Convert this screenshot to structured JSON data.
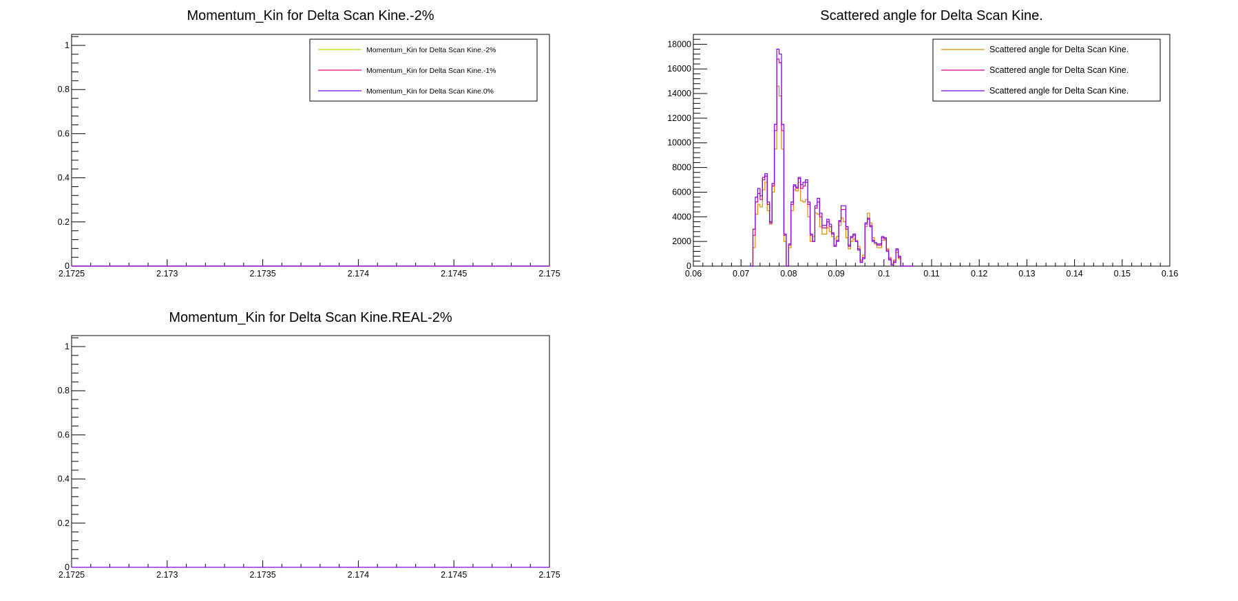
{
  "chart_data": [
    {
      "type": "line",
      "title": "Momentum_Kin for Delta Scan Kine.-2%",
      "xlabel": "",
      "ylabel": "",
      "xlim": [
        2.1725,
        2.175
      ],
      "ylim": [
        0,
        1.05
      ],
      "xticks": [
        "2.1725",
        "2.173",
        "2.1735",
        "2.174",
        "2.1745",
        "2.175"
      ],
      "yticks": [
        "0",
        "0.2",
        "0.4",
        "0.6",
        "0.8",
        "1"
      ],
      "legend_position": "top-right",
      "grid": false,
      "series": [
        {
          "name": "Momentum_Kin for Delta Scan Kine.-2%",
          "color": "#c8c800",
          "x": [
            2.1725,
            2.175
          ],
          "y": [
            0,
            0
          ]
        },
        {
          "name": "Momentum_Kin for Delta Scan Kine.-1%",
          "color": "#e0007a",
          "x": [
            2.1725,
            2.175
          ],
          "y": [
            0,
            0
          ]
        },
        {
          "name": "Momentum_Kin for Delta Scan Kine.0%",
          "color": "#7800e6",
          "x": [
            2.1725,
            2.175
          ],
          "y": [
            0,
            0
          ]
        }
      ]
    },
    {
      "type": "line",
      "title": "Scattered angle for Delta Scan Kine.",
      "xlabel": "",
      "ylabel": "",
      "xlim": [
        0.06,
        0.16
      ],
      "ylim": [
        0,
        18800
      ],
      "xticks": [
        "0.06",
        "0.07",
        "0.08",
        "0.09",
        "0.1",
        "0.11",
        "0.12",
        "0.13",
        "0.14",
        "0.15",
        "0.16"
      ],
      "yticks": [
        "0",
        "2000",
        "4000",
        "6000",
        "8000",
        "10000",
        "12000",
        "14000",
        "16000",
        "18000"
      ],
      "legend_position": "top-right",
      "grid": false,
      "series": [
        {
          "name": "Scattered angle for Delta Scan Kine.",
          "color": "#e08a00",
          "x": [
            0.072,
            0.0725,
            0.073,
            0.0735,
            0.074,
            0.0745,
            0.075,
            0.0755,
            0.076,
            0.0765,
            0.077,
            0.0775,
            0.078,
            0.0785,
            0.079,
            0.0795,
            0.08,
            0.0805,
            0.081,
            0.0815,
            0.082,
            0.0825,
            0.083,
            0.0835,
            0.084,
            0.0845,
            0.085,
            0.0855,
            0.086,
            0.0865,
            0.087,
            0.0875,
            0.088,
            0.0885,
            0.089,
            0.0895,
            0.09,
            0.0905,
            0.091,
            0.0915,
            0.092,
            0.0925,
            0.093,
            0.0935,
            0.094,
            0.0945,
            0.095,
            0.0955,
            0.096,
            0.0965,
            0.097,
            0.0975,
            0.098,
            0.0985,
            0.099,
            0.0995,
            0.1,
            0.1005,
            0.101,
            0.1015,
            0.102,
            0.1025,
            0.103,
            0.1035,
            0.104,
            0.1045,
            0.105,
            0.1055,
            0.106
          ],
          "y": [
            0,
            1500,
            4200,
            5000,
            4800,
            6200,
            6800,
            4500,
            3400,
            6000,
            9500,
            14600,
            13800,
            9500,
            2000,
            0,
            1500,
            4500,
            6200,
            6100,
            6800,
            5300,
            5200,
            5400,
            4000,
            2000,
            2400,
            4300,
            4200,
            3200,
            2600,
            2600,
            3100,
            2800,
            2400,
            2200,
            2400,
            3300,
            3900,
            3600,
            2300,
            1400,
            2000,
            2200,
            2100,
            1600,
            500,
            900,
            3200,
            4300,
            3500,
            2300,
            1800,
            1500,
            1500,
            2100,
            2100,
            1400,
            700,
            200,
            500,
            1100,
            600,
            0,
            0,
            0,
            0,
            0,
            0
          ]
        },
        {
          "name": "Scattered angle for Delta Scan Kine.",
          "color": "#d6008f",
          "x": [
            0.072,
            0.0725,
            0.073,
            0.0735,
            0.074,
            0.0745,
            0.075,
            0.0755,
            0.076,
            0.0765,
            0.077,
            0.0775,
            0.078,
            0.0785,
            0.079,
            0.0795,
            0.08,
            0.0805,
            0.081,
            0.0815,
            0.082,
            0.0825,
            0.083,
            0.0835,
            0.084,
            0.0845,
            0.085,
            0.0855,
            0.086,
            0.0865,
            0.087,
            0.0875,
            0.088,
            0.0885,
            0.089,
            0.0895,
            0.09,
            0.0905,
            0.091,
            0.0915,
            0.092,
            0.0925,
            0.093,
            0.0935,
            0.094,
            0.0945,
            0.095,
            0.0955,
            0.096,
            0.0965,
            0.097,
            0.0975,
            0.098,
            0.0985,
            0.099,
            0.0995,
            0.1,
            0.1005,
            0.101,
            0.1015,
            0.102,
            0.1025,
            0.103,
            0.1035,
            0.104,
            0.1045,
            0.105,
            0.1055,
            0.106
          ],
          "y": [
            0,
            2500,
            5200,
            5900,
            5400,
            7000,
            7300,
            5000,
            3500,
            6500,
            11000,
            16800,
            16500,
            11000,
            2500,
            0,
            1700,
            5000,
            6500,
            6300,
            7100,
            6300,
            6500,
            6800,
            5000,
            2500,
            2000,
            4700,
            5200,
            4000,
            3100,
            3100,
            3600,
            3200,
            2600,
            1700,
            2100,
            3600,
            4600,
            4600,
            3000,
            1600,
            2300,
            2500,
            2000,
            1400,
            400,
            700,
            3400,
            3900,
            3300,
            2100,
            1900,
            1700,
            1700,
            2300,
            2200,
            1300,
            600,
            100,
            400,
            1300,
            700,
            0,
            0,
            0,
            0,
            0,
            0
          ]
        },
        {
          "name": "Scattered angle for Delta Scan Kine.",
          "color": "#7800e6",
          "x": [
            0.072,
            0.0725,
            0.073,
            0.0735,
            0.074,
            0.0745,
            0.075,
            0.0755,
            0.076,
            0.0765,
            0.077,
            0.0775,
            0.078,
            0.0785,
            0.079,
            0.0795,
            0.08,
            0.0805,
            0.081,
            0.0815,
            0.082,
            0.0825,
            0.083,
            0.0835,
            0.084,
            0.0845,
            0.085,
            0.0855,
            0.086,
            0.0865,
            0.087,
            0.0875,
            0.088,
            0.0885,
            0.089,
            0.0895,
            0.09,
            0.0905,
            0.091,
            0.0915,
            0.092,
            0.0925,
            0.093,
            0.0935,
            0.094,
            0.0945,
            0.095,
            0.0955,
            0.096,
            0.0965,
            0.097,
            0.0975,
            0.098,
            0.0985,
            0.099,
            0.0995,
            0.1,
            0.1005,
            0.101,
            0.1015,
            0.102,
            0.1025,
            0.103,
            0.1035,
            0.104,
            0.1045,
            0.105,
            0.1055,
            0.106
          ],
          "y": [
            0,
            3000,
            5600,
            6300,
            5700,
            7200,
            7500,
            5200,
            3600,
            6700,
            11500,
            17600,
            17200,
            11500,
            2600,
            0,
            1800,
            5200,
            6600,
            6400,
            7200,
            6600,
            6800,
            7000,
            5200,
            2600,
            2000,
            4900,
            5500,
            4300,
            3300,
            3300,
            3800,
            3400,
            2700,
            1600,
            2000,
            3700,
            4900,
            4900,
            3200,
            1700,
            2400,
            2600,
            2000,
            1300,
            300,
            600,
            3500,
            3800,
            3200,
            2000,
            1900,
            1800,
            1800,
            2400,
            2300,
            1200,
            500,
            100,
            300,
            1400,
            800,
            0,
            0,
            0,
            0,
            0,
            0
          ]
        }
      ]
    },
    {
      "type": "line",
      "title": "Momentum_Kin for Delta Scan Kine.REAL-2%",
      "xlabel": "",
      "ylabel": "",
      "xlim": [
        2.1725,
        2.175
      ],
      "ylim": [
        0,
        1.05
      ],
      "xticks": [
        "2.1725",
        "2.173",
        "2.1735",
        "2.174",
        "2.1745",
        "2.175"
      ],
      "yticks": [
        "0",
        "0.2",
        "0.4",
        "0.6",
        "0.8",
        "1"
      ],
      "grid": false,
      "series": [
        {
          "color": "#7800e6",
          "x": [
            2.1725,
            2.175
          ],
          "y": [
            0,
            0
          ]
        }
      ]
    }
  ]
}
